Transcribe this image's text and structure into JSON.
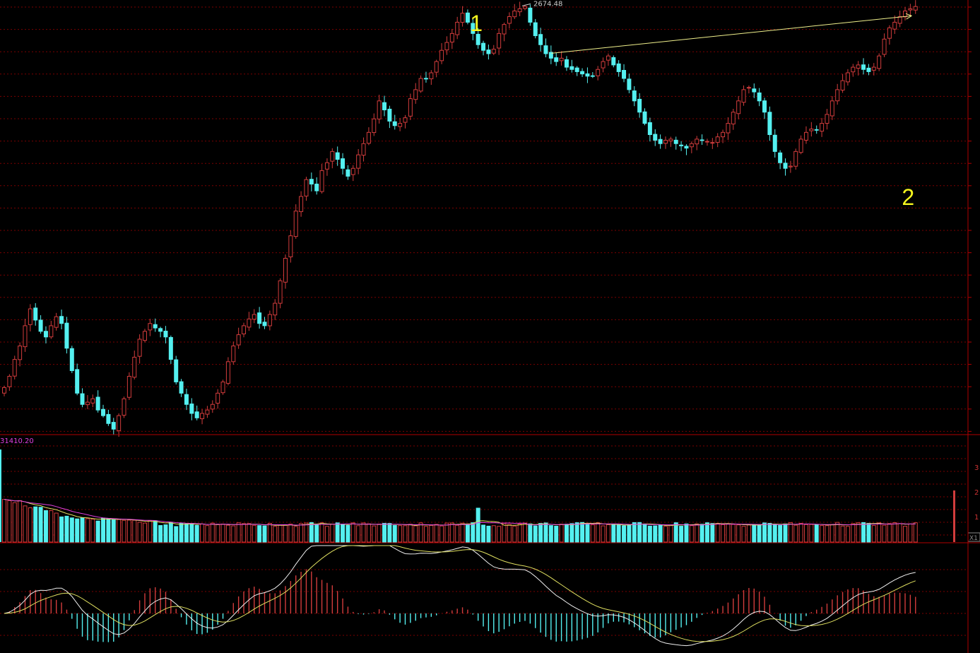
{
  "chart_data": {
    "type": "candlestick",
    "colors": {
      "up": "#d23c3c",
      "down": "#54f0f0",
      "grid": "#8a0000",
      "frame": "#b00000",
      "trendline": "#f0f08c",
      "annotation": "#f5f51e",
      "volume_label": "#e040e0",
      "ma_white": "#f0f0f0",
      "ma_yellow": "#e0e060"
    },
    "price_panel": {
      "high_label": "2674.48",
      "annotations": [
        {
          "text": "1",
          "at_index": 90
        },
        {
          "text": "2",
          "at_index": 174
        }
      ],
      "trendline": {
        "from_index": 107,
        "to_index": 174
      },
      "close_estimates": [
        2335,
        2345,
        2360,
        2372,
        2390,
        2405,
        2395,
        2385,
        2380,
        2390,
        2398,
        2392,
        2370,
        2350,
        2330,
        2320,
        2322,
        2325,
        2315,
        2310,
        2303,
        2298,
        2310,
        2325,
        2345,
        2362,
        2378,
        2385,
        2392,
        2388,
        2385,
        2380,
        2360,
        2340,
        2330,
        2320,
        2312,
        2308,
        2312,
        2315,
        2320,
        2330,
        2340,
        2358,
        2372,
        2382,
        2390,
        2396,
        2400,
        2392,
        2390,
        2400,
        2410,
        2430,
        2450,
        2470,
        2492,
        2505,
        2520,
        2516,
        2510,
        2528,
        2535,
        2545,
        2538,
        2530,
        2523,
        2530,
        2542,
        2552,
        2562,
        2574,
        2590,
        2582,
        2572,
        2568,
        2570,
        2575,
        2592,
        2600,
        2610,
        2610,
        2615,
        2625,
        2635,
        2642,
        2650,
        2660,
        2668,
        2660,
        2650,
        2640,
        2635,
        2632,
        2636,
        2650,
        2658,
        2665,
        2670,
        2672,
        2674,
        2660,
        2648,
        2640,
        2632,
        2628,
        2625,
        2628,
        2620,
        2618,
        2616,
        2614,
        2612,
        2612,
        2618,
        2625,
        2630,
        2622,
        2616,
        2610,
        2600,
        2590,
        2580,
        2570,
        2560,
        2555,
        2552,
        2555,
        2556,
        2552,
        2550,
        2548,
        2552,
        2556,
        2555,
        2554,
        2553,
        2558,
        2562,
        2570,
        2580,
        2590,
        2600,
        2602,
        2598,
        2590,
        2580,
        2560,
        2545,
        2535,
        2530,
        2532,
        2545,
        2556,
        2562,
        2565,
        2564,
        2570,
        2578,
        2590,
        2600,
        2608,
        2615,
        2620,
        2622,
        2618,
        2616,
        2620,
        2630,
        2645,
        2655,
        2660,
        2665,
        2670,
        2672,
        2674
      ]
    },
    "volume_panel": {
      "max_label": "31410.20",
      "axis_labels": [
        "3",
        "2",
        "1"
      ],
      "corner_label": "X1"
    },
    "macd_panel": {
      "series": [
        "DIF",
        "DEA",
        "MACD histogram"
      ]
    }
  }
}
